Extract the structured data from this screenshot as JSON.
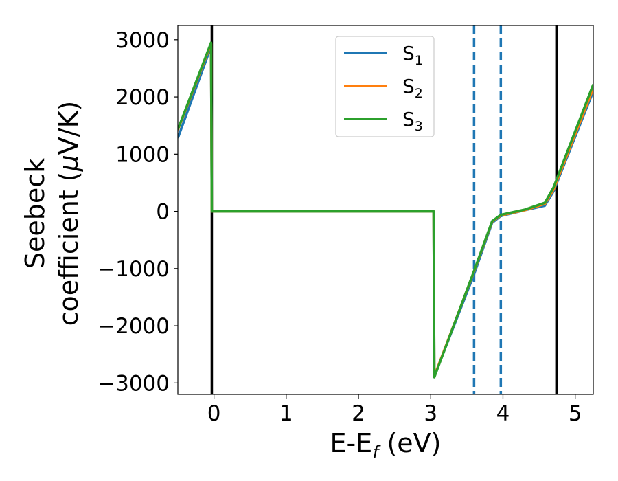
{
  "chart_data": {
    "type": "line",
    "xlabel": "E-E",
    "xlabel_sub": "f",
    "xlabel_unit": " (eV)",
    "ylabel_line1": "Seebeck",
    "ylabel_line2": "coefficient  (",
    "ylabel_mu": "μ",
    "ylabel_unit": "V/K)",
    "xlim": [
      -0.5,
      5.25
    ],
    "ylim": [
      -3200,
      3250
    ],
    "xticks": [
      0,
      1,
      2,
      3,
      4,
      5
    ],
    "xtick_labels": [
      "0",
      "1",
      "2",
      "3",
      "4",
      "5"
    ],
    "yticks": [
      3000,
      2000,
      1000,
      0,
      -1000,
      -2000,
      -3000
    ],
    "ytick_labels": [
      "3000",
      "2000",
      "1000",
      "0",
      "−1000",
      "−2000",
      "−3000"
    ],
    "grid": false,
    "legend_position": "top-center",
    "vertical_lines": [
      {
        "x": -0.03,
        "style": "solid",
        "color": "#000000"
      },
      {
        "x": 4.74,
        "style": "solid",
        "color": "#000000"
      },
      {
        "x": 3.6,
        "style": "dashed",
        "color": "#1f77b4"
      },
      {
        "x": 3.97,
        "style": "dashed",
        "color": "#1f77b4"
      }
    ],
    "series": [
      {
        "name": "S",
        "sub": "1",
        "color": "#1f77b4",
        "points": [
          [
            -0.5,
            1280
          ],
          [
            -0.04,
            2880
          ],
          [
            -0.03,
            0
          ],
          [
            3.04,
            0
          ],
          [
            3.05,
            -2880
          ],
          [
            3.6,
            -1100
          ],
          [
            3.85,
            -200
          ],
          [
            3.97,
            -80
          ],
          [
            4.3,
            20
          ],
          [
            4.58,
            100
          ],
          [
            4.7,
            350
          ],
          [
            5.25,
            2100
          ]
        ]
      },
      {
        "name": "S",
        "sub": "2",
        "color": "#ff7f0e",
        "points": [
          [
            -0.5,
            1420
          ],
          [
            -0.04,
            2930
          ],
          [
            -0.03,
            0
          ],
          [
            3.04,
            0
          ],
          [
            3.05,
            -2880
          ],
          [
            3.6,
            -1050
          ],
          [
            3.85,
            -180
          ],
          [
            3.97,
            -70
          ],
          [
            4.3,
            20
          ],
          [
            4.58,
            130
          ],
          [
            4.7,
            380
          ],
          [
            5.25,
            2150
          ]
        ]
      },
      {
        "name": "S",
        "sub": "3",
        "color": "#2ca02c",
        "points": [
          [
            -0.5,
            1430
          ],
          [
            -0.04,
            2950
          ],
          [
            -0.03,
            0
          ],
          [
            3.04,
            0
          ],
          [
            3.05,
            -2900
          ],
          [
            3.6,
            -1040
          ],
          [
            3.85,
            -170
          ],
          [
            3.97,
            -60
          ],
          [
            4.3,
            30
          ],
          [
            4.58,
            150
          ],
          [
            4.7,
            420
          ],
          [
            5.25,
            2220
          ]
        ]
      }
    ]
  }
}
